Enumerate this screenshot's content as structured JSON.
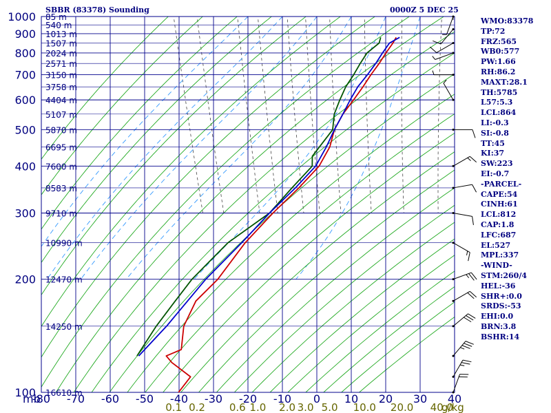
{
  "header": {
    "title": "SBBR (83378) Sounding",
    "time": "0000Z  5 DEC 25"
  },
  "indices": [
    "WMO:83378",
    "TP:72",
    "FRZ:565",
    "WB0:577",
    "PW:1.66",
    "RH:86.2",
    "MAXT:28.1",
    "TH:5785",
    "L57:5.3",
    "LCL:864",
    "LI:-0.3",
    "SI:-0.8",
    "TT:45",
    "KI:37",
    "SW:223",
    "EI:-0.7",
    "-PARCEL-",
    "CAPE:54",
    "CINH:61",
    "LCL:812",
    "CAP:1.8",
    "LFC:687",
    "EL:527",
    "MPL:337",
    "-WIND-",
    "STM:260/4",
    "HEL:-36",
    "SHR+:0.0",
    "SRDS:-53",
    "EHI:0.0",
    "BRN:3.8",
    "BSHR:14"
  ],
  "colors": {
    "background": "#ffffff",
    "grid": "#00008b",
    "labels": "#000080",
    "temperature": "#cc0000",
    "dewpoint": "#005500",
    "parcel": "#0000cc",
    "dry_adiabats": "#22aa22",
    "moist_adiabats": "#3399ff",
    "mixing_ratio": "#444444",
    "mixing_ratio_labels": "#666600",
    "wind_barbs": "#000000"
  },
  "chart_data": {
    "type": "skew-t",
    "pressure_axis": {
      "unit": "mb",
      "unit_label": "mb",
      "range": [
        1000,
        100
      ],
      "scale": "log",
      "ticks": [
        100,
        200,
        300,
        400,
        500,
        600,
        700,
        800,
        900,
        1000
      ],
      "tick_labels": [
        "100",
        "200",
        "300",
        "400",
        "500",
        "600",
        "700",
        "800",
        "900",
        "1000"
      ]
    },
    "temperature_axis": {
      "unit": "C",
      "range": [
        -80,
        40
      ],
      "ticks": [
        -80,
        -70,
        -60,
        -50,
        -40,
        -30,
        -20,
        -10,
        0,
        10,
        20,
        30,
        40
      ],
      "tick_labels": [
        "-80",
        "-70",
        "-60",
        "-50",
        "-40",
        "-30",
        "-20",
        "-10",
        "0",
        "10",
        "20",
        "30",
        "40"
      ]
    },
    "height_labels": [
      {
        "p": 100,
        "label": "16610 m"
      },
      {
        "p": 150,
        "label": "14250 m"
      },
      {
        "p": 200,
        "label": "12470 m"
      },
      {
        "p": 250,
        "label": "10990 m"
      },
      {
        "p": 300,
        "label": "9710 m"
      },
      {
        "p": 350,
        "label": "8583 m"
      },
      {
        "p": 400,
        "label": "7600 m"
      },
      {
        "p": 450,
        "label": "6695 m"
      },
      {
        "p": 500,
        "label": "5870 m"
      },
      {
        "p": 550,
        "label": "5107 m"
      },
      {
        "p": 600,
        "label": "4404 m"
      },
      {
        "p": 650,
        "label": "3758 m"
      },
      {
        "p": 700,
        "label": "3150 m"
      },
      {
        "p": 750,
        "label": "2571 m"
      },
      {
        "p": 800,
        "label": "2024 m"
      },
      {
        "p": 850,
        "label": "1507 m"
      },
      {
        "p": 900,
        "label": "1013 m"
      },
      {
        "p": 950,
        "label": "540 m"
      },
      {
        "p": 1000,
        "label": "85 m"
      }
    ],
    "mixing_ratio_axis": {
      "unit_label": "g/kg",
      "values": [
        0.1,
        0.2,
        0.6,
        1.0,
        2.0,
        3.0,
        5.0,
        10.0,
        20.0,
        40.0
      ],
      "tick_labels": [
        "0.1",
        "0.2",
        "0.6",
        "1.0",
        "2.0",
        "3.0",
        "5.0",
        "10.0",
        "20.0",
        "40.0"
      ]
    },
    "series": [
      {
        "key": "temperature",
        "points": [
          {
            "p": 100,
            "t": -77
          },
          {
            "p": 110,
            "t": -72
          },
          {
            "p": 120,
            "t": -76
          },
          {
            "p": 125,
            "t": -77
          },
          {
            "p": 130,
            "t": -72
          },
          {
            "p": 150,
            "t": -69
          },
          {
            "p": 175,
            "t": -63
          },
          {
            "p": 200,
            "t": -54.5
          },
          {
            "p": 250,
            "t": -43
          },
          {
            "p": 300,
            "t": -32
          },
          {
            "p": 350,
            "t": -22
          },
          {
            "p": 400,
            "t": -14
          },
          {
            "p": 450,
            "t": -9
          },
          {
            "p": 500,
            "t": -6
          },
          {
            "p": 550,
            "t": -2
          },
          {
            "p": 600,
            "t": 2.5
          },
          {
            "p": 650,
            "t": 6.5
          },
          {
            "p": 700,
            "t": 10
          },
          {
            "p": 750,
            "t": 13.5
          },
          {
            "p": 800,
            "t": 16.5
          },
          {
            "p": 850,
            "t": 19.5
          },
          {
            "p": 880,
            "t": 21
          }
        ]
      },
      {
        "key": "dewpoint",
        "points": [
          {
            "p": 125,
            "t": -85.5
          },
          {
            "p": 150,
            "t": -77
          },
          {
            "p": 175,
            "t": -69
          },
          {
            "p": 200,
            "t": -62
          },
          {
            "p": 250,
            "t": -48
          },
          {
            "p": 300,
            "t": -33
          },
          {
            "p": 350,
            "t": -24
          },
          {
            "p": 400,
            "t": -16
          },
          {
            "p": 425,
            "t": -15
          },
          {
            "p": 450,
            "t": -12
          },
          {
            "p": 500,
            "t": -6.5
          },
          {
            "p": 550,
            "t": -4.5
          },
          {
            "p": 600,
            "t": -1.5
          },
          {
            "p": 650,
            "t": 1.5
          },
          {
            "p": 700,
            "t": 5
          },
          {
            "p": 750,
            "t": 8
          },
          {
            "p": 800,
            "t": 11
          },
          {
            "p": 850,
            "t": 15.5
          },
          {
            "p": 880,
            "t": 16.5
          }
        ]
      },
      {
        "key": "parcel",
        "points": [
          {
            "p": 125,
            "t": -85
          },
          {
            "p": 150,
            "t": -74
          },
          {
            "p": 200,
            "t": -58
          },
          {
            "p": 250,
            "t": -44
          },
          {
            "p": 300,
            "t": -33
          },
          {
            "p": 350,
            "t": -23
          },
          {
            "p": 400,
            "t": -15
          },
          {
            "p": 450,
            "t": -10
          },
          {
            "p": 500,
            "t": -6
          },
          {
            "p": 550,
            "t": -2
          },
          {
            "p": 600,
            "t": 1.5
          },
          {
            "p": 650,
            "t": 5
          },
          {
            "p": 700,
            "t": 9
          },
          {
            "p": 750,
            "t": 12.5
          },
          {
            "p": 800,
            "t": 15.5
          },
          {
            "p": 850,
            "t": 18.5
          },
          {
            "p": 880,
            "t": 22
          }
        ]
      }
    ],
    "winds": [
      {
        "p": 1000,
        "dir": 200,
        "spd": 5
      },
      {
        "p": 925,
        "dir": 220,
        "spd": 10
      },
      {
        "p": 850,
        "dir": 240,
        "spd": 10
      },
      {
        "p": 800,
        "dir": 250,
        "spd": 5
      },
      {
        "p": 700,
        "dir": 270,
        "spd": 5
      },
      {
        "p": 600,
        "dir": 330,
        "spd": 5
      },
      {
        "p": 500,
        "dir": 90,
        "spd": 10
      },
      {
        "p": 400,
        "dir": 60,
        "spd": 15
      },
      {
        "p": 350,
        "dir": 80,
        "spd": 10
      },
      {
        "p": 300,
        "dir": 100,
        "spd": 10
      },
      {
        "p": 250,
        "dir": 120,
        "spd": 15
      },
      {
        "p": 200,
        "dir": 70,
        "spd": 25
      },
      {
        "p": 175,
        "dir": 60,
        "spd": 20
      },
      {
        "p": 150,
        "dir": 50,
        "spd": 30
      },
      {
        "p": 125,
        "dir": 40,
        "spd": 35
      },
      {
        "p": 110,
        "dir": 30,
        "spd": 25
      },
      {
        "p": 100,
        "dir": 20,
        "spd": 20
      }
    ]
  }
}
